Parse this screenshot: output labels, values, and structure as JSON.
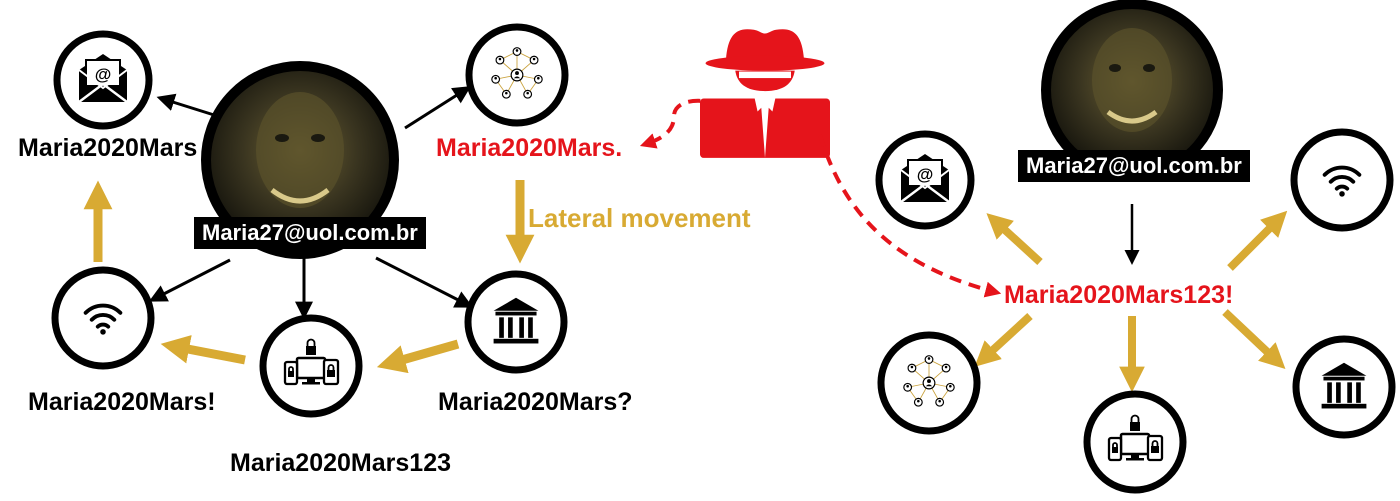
{
  "colors": {
    "gold": "#d8aa33",
    "attacker_red": "#e5141b",
    "black": "#000000",
    "face": "#3a3520"
  },
  "left_scenario": {
    "email": "Maria27@uol.com.br",
    "passwords": {
      "email_service": "Maria2020Mars",
      "social_network": "Maria2020Mars.",
      "wifi": "Maria2020Mars!",
      "devices": "Maria2020Mars123",
      "bank": "Maria2020Mars?"
    },
    "icons": [
      "envelope-at-icon",
      "network-people-icon",
      "wifi-icon",
      "devices-lock-icon",
      "bank-icon"
    ]
  },
  "attacker": {
    "icon": "hacker-hat-icon",
    "caption": "Lateral movement"
  },
  "right_scenario": {
    "email": "Maria27@uol.com.br",
    "shared_password": "Maria2020Mars123!",
    "icons": [
      "envelope-at-icon",
      "wifi-icon",
      "network-people-icon",
      "devices-lock-icon",
      "bank-icon"
    ]
  }
}
